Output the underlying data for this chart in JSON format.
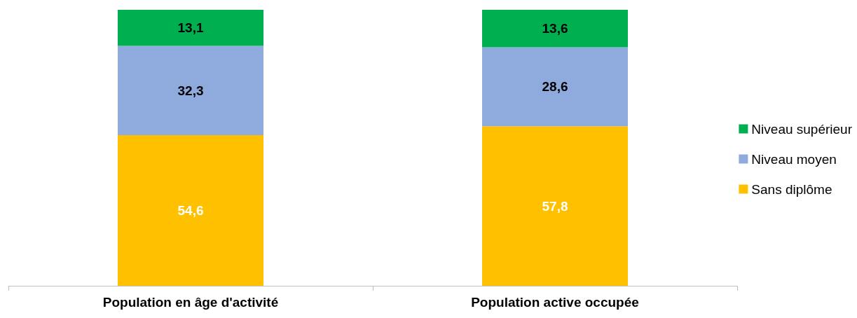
{
  "chart_data": {
    "type": "bar",
    "stacked": true,
    "categories": [
      "Population en âge d'activité",
      "Population active occupée"
    ],
    "series": [
      {
        "name": "Sans diplôme",
        "color": "#ffc000",
        "values": [
          54.6,
          57.8
        ],
        "value_labels": [
          "54,6",
          "57,8"
        ]
      },
      {
        "name": "Niveau moyen",
        "color": "#8faadc",
        "values": [
          32.3,
          28.6
        ],
        "value_labels": [
          "32,3",
          "28,6"
        ]
      },
      {
        "name": "Niveau supérieur",
        "color": "#00b050",
        "values": [
          13.1,
          13.6
        ],
        "value_labels": [
          "13,1",
          "13,6"
        ]
      }
    ],
    "legend": "right"
  }
}
